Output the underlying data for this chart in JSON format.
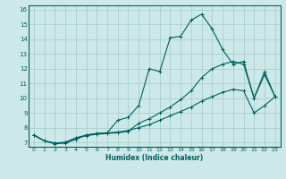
{
  "title": "",
  "xlabel": "Humidex (Indice chaleur)",
  "ylabel": "",
  "background_color": "#cce8e8",
  "grid_color": "#aacfcf",
  "line_color": "#006060",
  "xlim": [
    -0.5,
    23.5
  ],
  "ylim": [
    6.7,
    16.3
  ],
  "xticks": [
    0,
    1,
    2,
    3,
    4,
    5,
    6,
    7,
    8,
    9,
    10,
    11,
    12,
    13,
    14,
    15,
    16,
    17,
    18,
    19,
    20,
    21,
    22,
    23
  ],
  "yticks": [
    7,
    8,
    9,
    10,
    11,
    12,
    13,
    14,
    15,
    16
  ],
  "line1_x": [
    0,
    1,
    2,
    3,
    4,
    5,
    6,
    7,
    8,
    9,
    10,
    11,
    12,
    13,
    14,
    15,
    16,
    17,
    18,
    19,
    20,
    21,
    22,
    23
  ],
  "line1_y": [
    7.5,
    7.1,
    6.9,
    6.95,
    7.2,
    7.5,
    7.6,
    7.65,
    8.5,
    8.7,
    9.5,
    12.0,
    11.8,
    14.1,
    14.2,
    15.3,
    15.7,
    14.7,
    13.3,
    12.3,
    12.5,
    10.0,
    11.8,
    10.1
  ],
  "line2_x": [
    0,
    1,
    2,
    3,
    4,
    5,
    6,
    7,
    8,
    9,
    10,
    11,
    12,
    13,
    14,
    15,
    16,
    17,
    18,
    19,
    20,
    21,
    22,
    23
  ],
  "line2_y": [
    7.5,
    7.1,
    6.95,
    7.0,
    7.3,
    7.45,
    7.55,
    7.6,
    7.65,
    7.75,
    8.3,
    8.6,
    9.0,
    9.4,
    9.9,
    10.5,
    11.4,
    12.0,
    12.3,
    12.5,
    12.3,
    10.0,
    11.6,
    10.1
  ],
  "line3_x": [
    0,
    1,
    2,
    3,
    4,
    5,
    6,
    7,
    8,
    9,
    10,
    11,
    12,
    13,
    14,
    15,
    16,
    17,
    18,
    19,
    20,
    21,
    22,
    23
  ],
  "line3_y": [
    7.5,
    7.1,
    6.95,
    7.0,
    7.3,
    7.5,
    7.6,
    7.65,
    7.7,
    7.8,
    8.0,
    8.2,
    8.5,
    8.8,
    9.1,
    9.4,
    9.8,
    10.1,
    10.4,
    10.6,
    10.5,
    9.0,
    9.5,
    10.1
  ]
}
